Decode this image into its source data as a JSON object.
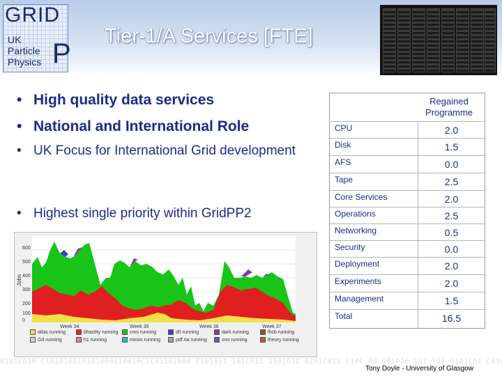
{
  "logo": {
    "grid": "GRID",
    "p": "P",
    "line1": "UK",
    "line2": "Particle",
    "line3": "Physics"
  },
  "title": "Tier-1/A Services [FTE]",
  "bullets": [
    "High quality data services",
    "National and International Role",
    "UK Focus for International Grid development",
    "Highest single priority within GridPP2"
  ],
  "bullet_glyph": "•",
  "table": {
    "header": "Regained Programme",
    "rows": [
      {
        "label": "CPU",
        "value": "2.0"
      },
      {
        "label": "Disk",
        "value": "1.5"
      },
      {
        "label": "AFS",
        "value": "0.0"
      },
      {
        "label": "Tape",
        "value": "2.5"
      },
      {
        "label": "Core Services",
        "value": "2.0"
      },
      {
        "label": "Operations",
        "value": "2.5"
      },
      {
        "label": "Networking",
        "value": "0.5"
      },
      {
        "label": "Security",
        "value": "0.0"
      },
      {
        "label": "Deployment",
        "value": "2.0"
      },
      {
        "label": "Experiments",
        "value": "2.0"
      },
      {
        "label": "Management",
        "value": "1.5"
      },
      {
        "label": "Total",
        "value": "16.5"
      }
    ]
  },
  "chart": {
    "ylabel": "Jobs",
    "yticks": [
      "600",
      "500",
      "400",
      "300",
      "200",
      "100",
      "0"
    ],
    "xticks": [
      "Week 34",
      "Week 35",
      "Week 36",
      "Week 37"
    ],
    "legend": [
      "atlas running",
      "bhactity running",
      "cms running",
      "d0 running",
      "dark running",
      "lhcb running",
      "Gd running",
      "h1 running",
      "minos running",
      "pdf.ria running",
      "sno running",
      "theory running"
    ],
    "legend_colors": [
      "#f2e04a",
      "#e02020",
      "#19c419",
      "#4040c0",
      "#8a2fbf",
      "#7a5a2a",
      "#d0d0d0",
      "#e87aa0",
      "#20c0c0",
      "#a0a0a0",
      "#5a5ad0",
      "#c05050"
    ]
  },
  "chart_data": {
    "type": "area",
    "ylabel": "Jobs",
    "ylim": [
      0,
      600
    ],
    "x": [
      "Week 34",
      "Week 35",
      "Week 36",
      "Week 37"
    ]
  },
  "binary_text": "0101C010 C101010010101000110010C1C01101000 C101011 101C011 110101C 0101C011 C10C 00 C01010 101 101 0101C01 C01C0101C1C1 011C01101C 101100001C 01 11010 0101 10101 C11010110100010 C0C10101 0101101010",
  "footer": "Tony Doyle - University of Glasgow"
}
